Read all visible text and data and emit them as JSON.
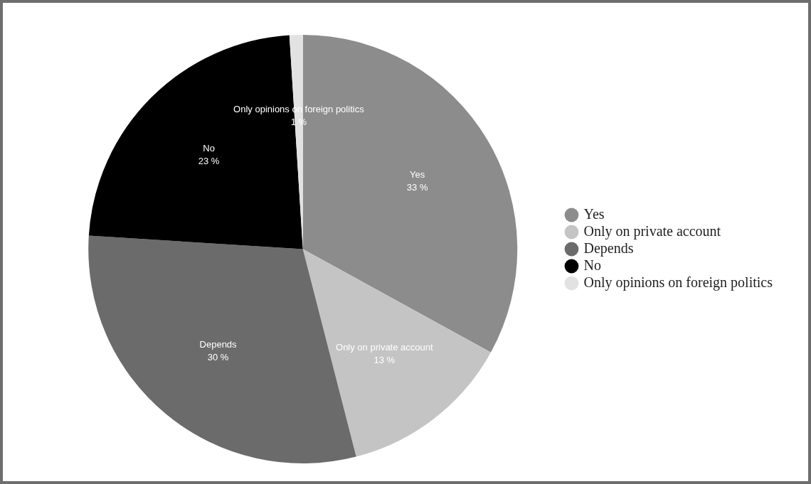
{
  "chart_data": {
    "type": "pie",
    "categories": [
      "Yes",
      "Only on private account",
      "Depends",
      "No",
      "Only opinions on foreign politics"
    ],
    "values": [
      33,
      13,
      30,
      23,
      1
    ],
    "colors": [
      "#8c8c8c",
      "#c4c4c4",
      "#6b6b6b",
      "#000000",
      "#e2e2e2"
    ],
    "value_labels": [
      "33 %",
      "13 %",
      "30 %",
      "23 %",
      "1 %"
    ],
    "legend": "right"
  }
}
